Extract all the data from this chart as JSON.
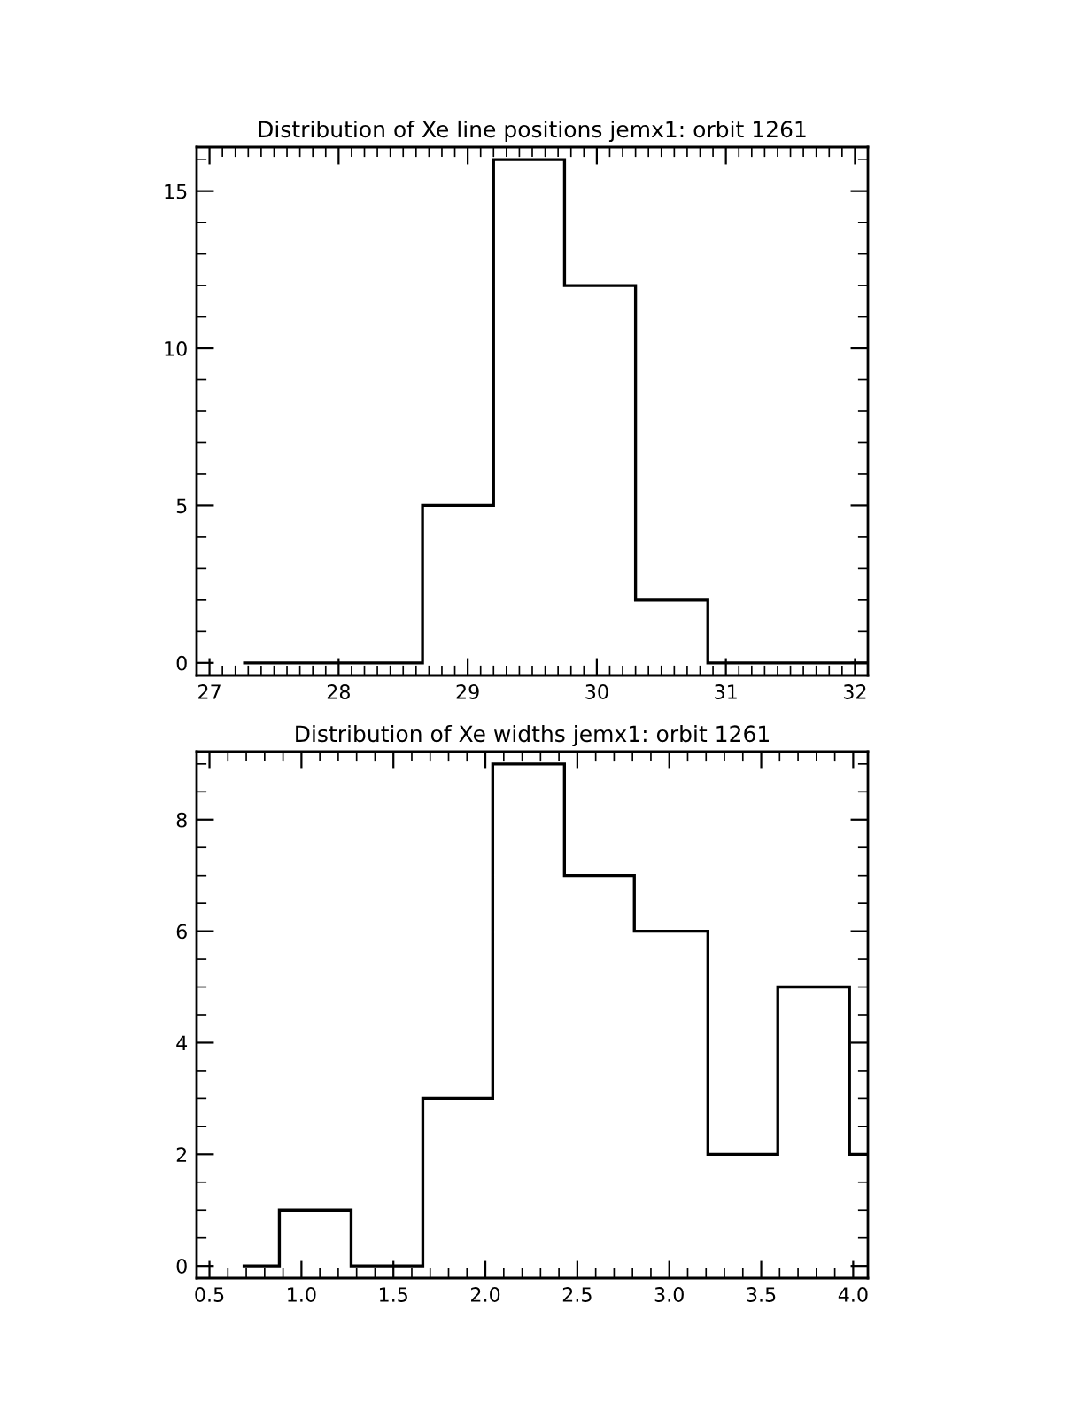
{
  "chart_data": [
    {
      "type": "histogram",
      "title": "Distribution of Xe line positions jemx1: orbit 1261",
      "bins": [
        27.26,
        28.65,
        29.2,
        29.75,
        30.3,
        30.86,
        32.1
      ],
      "values": [
        0,
        5,
        16,
        12,
        2,
        0
      ],
      "color": "#000000",
      "xlim": [
        26.9,
        32.1
      ],
      "xticks": [
        27,
        28,
        29,
        30,
        31,
        32
      ],
      "ylim": [
        -0.4,
        16.4
      ],
      "yticks": [
        0,
        5,
        10,
        15
      ],
      "grid": false
    },
    {
      "type": "histogram",
      "title": "Distribution of Xe widths jemx1: orbit 1261",
      "bins": [
        0.68,
        0.88,
        1.27,
        1.66,
        2.04,
        2.43,
        2.81,
        3.21,
        3.59,
        3.98,
        4.08
      ],
      "values": [
        0,
        1,
        0,
        3,
        9,
        7,
        6,
        2,
        5,
        2
      ],
      "color": "#000000",
      "xlim": [
        0.43,
        4.08
      ],
      "xticks": [
        {
          "value": 0.5,
          "label": "0.5"
        },
        {
          "value": 1.0,
          "label": "1.0"
        },
        {
          "value": 1.5,
          "label": "1.5"
        },
        {
          "value": 2.0,
          "label": "2.0"
        },
        {
          "value": 2.5,
          "label": "2.5"
        },
        {
          "value": 3.0,
          "label": "3.0"
        },
        {
          "value": 3.5,
          "label": "3.5"
        },
        {
          "value": 4.0,
          "label": "4.0"
        }
      ],
      "ylim": [
        -0.22,
        9.22
      ],
      "yticks": [
        0,
        2,
        4,
        6,
        8
      ],
      "grid": false
    }
  ]
}
